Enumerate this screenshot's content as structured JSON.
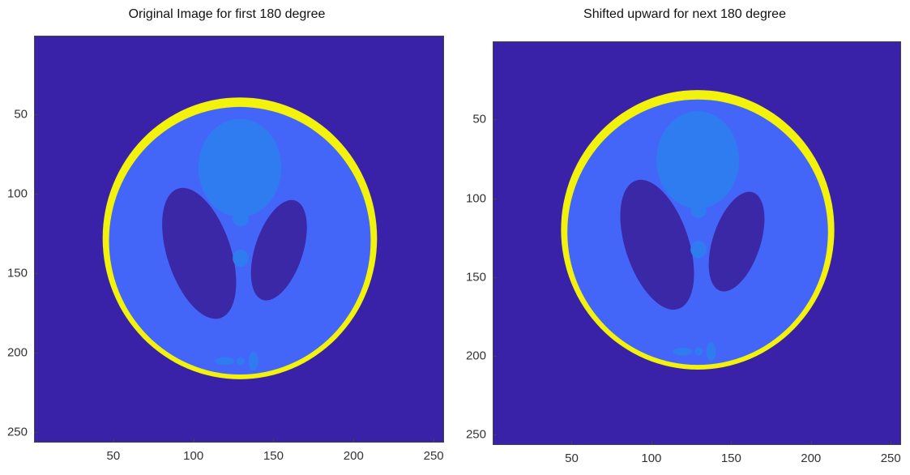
{
  "panels": [
    {
      "id": "left",
      "title": "Original Image for first 180 degree",
      "shift_up": 0,
      "xticks": [
        "50",
        "100",
        "150",
        "200",
        "250"
      ],
      "yticks": [
        "50",
        "100",
        "150",
        "200",
        "250"
      ]
    },
    {
      "id": "right",
      "title": "Shifted upward for next 180 degree",
      "shift_up": 8,
      "xticks": [
        "50",
        "100",
        "150",
        "200",
        "250"
      ],
      "yticks": [
        "50",
        "100",
        "150",
        "200",
        "250"
      ]
    }
  ],
  "axis": {
    "xlim": [
      0.5,
      256.5
    ],
    "ylim": [
      0.5,
      256.5
    ],
    "ydir": "reverse"
  },
  "colors": {
    "background": "#3a22a8",
    "skull": "#f2f20c",
    "brain": "#4466f8",
    "dark_ellipses": "#3a28a6",
    "light_ellipses": "#2f7cf0"
  }
}
